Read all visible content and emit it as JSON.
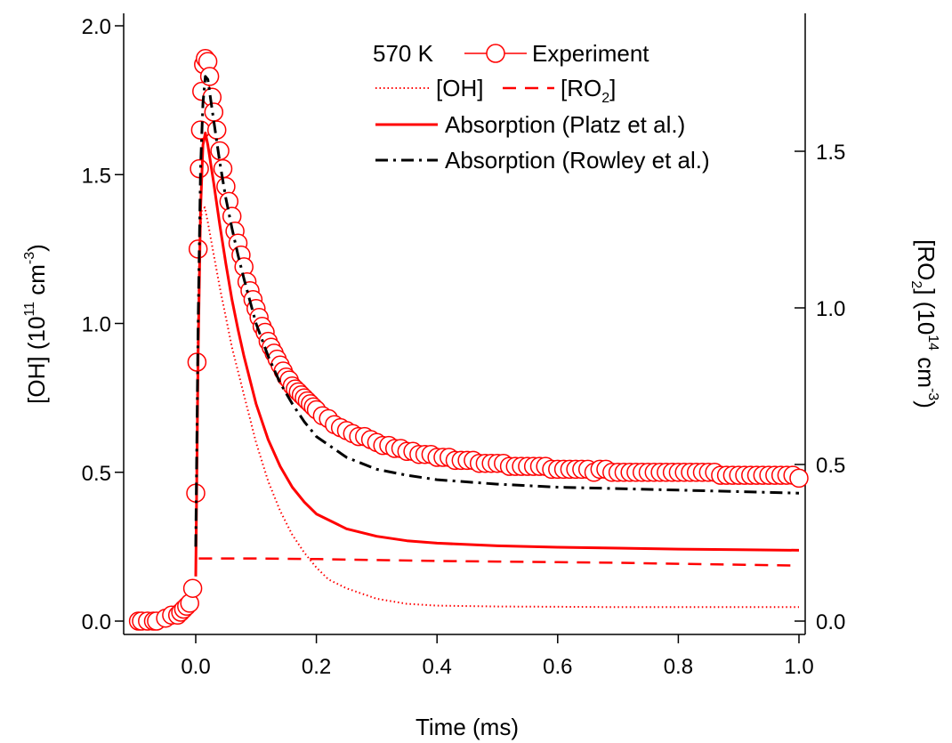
{
  "chart_data": {
    "type": "line",
    "xlabel": "Time (ms)",
    "ylabel_left": {
      "pre": "[OH] (10",
      "sup": "11",
      "mid": " cm",
      "sup2": "-3",
      "post": ")"
    },
    "ylabel_right": {
      "pre": "[RO",
      "sub": "2",
      "mid": "] (10",
      "sup": "14",
      "mid2": " cm",
      "sup2": "-3",
      "post": ")"
    },
    "xlim": [
      -0.1,
      1.0
    ],
    "ylim_left": [
      0.0,
      2.0
    ],
    "ylim_right": [
      0.0,
      1.9
    ],
    "xticks": [
      "0.0",
      "0.2",
      "0.4",
      "0.6",
      "0.8",
      "1.0"
    ],
    "xtick_values": [
      0.0,
      0.2,
      0.4,
      0.6,
      0.8,
      1.0
    ],
    "yticks_left": [
      "0.0",
      "0.5",
      "1.0",
      "1.5",
      "2.0"
    ],
    "ytick_left_values": [
      0.0,
      0.5,
      1.0,
      1.5,
      2.0
    ],
    "yticks_right": [
      "0.0",
      "0.5",
      "1.0",
      "1.5"
    ],
    "ytick_right_values": [
      0.0,
      0.5,
      1.0,
      1.5
    ],
    "grid": false,
    "legend_position": "top-right",
    "legend": {
      "temperature": "570 K",
      "experiment": "Experiment",
      "oh": "[OH]",
      "ro2": {
        "pre": "[RO",
        "sub": "2",
        "post": "]"
      },
      "platz": "Absorption (Platz et al.)",
      "rowley": "Absorption (Rowley et al.)"
    },
    "colors": {
      "red": "#ff0000",
      "black": "#000000"
    },
    "series": [
      {
        "name": "Experiment",
        "axis": "left",
        "style": "markers",
        "color": "#ff0000",
        "x": [
          -0.095,
          -0.09,
          -0.08,
          -0.07,
          -0.065,
          -0.05,
          -0.04,
          -0.03,
          -0.025,
          -0.02,
          -0.015,
          -0.01,
          -0.005,
          0.0,
          0.002,
          0.004,
          0.006,
          0.008,
          0.01,
          0.013,
          0.016,
          0.02,
          0.023,
          0.027,
          0.03,
          0.035,
          0.04,
          0.045,
          0.05,
          0.055,
          0.06,
          0.065,
          0.07,
          0.075,
          0.08,
          0.085,
          0.09,
          0.095,
          0.1,
          0.105,
          0.11,
          0.115,
          0.12,
          0.125,
          0.13,
          0.135,
          0.14,
          0.145,
          0.15,
          0.155,
          0.16,
          0.165,
          0.17,
          0.175,
          0.18,
          0.185,
          0.19,
          0.195,
          0.2,
          0.21,
          0.22,
          0.23,
          0.24,
          0.25,
          0.26,
          0.27,
          0.28,
          0.29,
          0.3,
          0.31,
          0.32,
          0.33,
          0.34,
          0.35,
          0.36,
          0.37,
          0.38,
          0.39,
          0.4,
          0.41,
          0.42,
          0.43,
          0.44,
          0.45,
          0.46,
          0.47,
          0.48,
          0.49,
          0.5,
          0.51,
          0.52,
          0.53,
          0.54,
          0.55,
          0.56,
          0.57,
          0.58,
          0.59,
          0.6,
          0.61,
          0.62,
          0.63,
          0.64,
          0.65,
          0.66,
          0.67,
          0.68,
          0.69,
          0.7,
          0.71,
          0.72,
          0.73,
          0.74,
          0.75,
          0.76,
          0.77,
          0.78,
          0.79,
          0.8,
          0.81,
          0.82,
          0.83,
          0.84,
          0.85,
          0.86,
          0.87,
          0.88,
          0.89,
          0.9,
          0.91,
          0.92,
          0.93,
          0.94,
          0.95,
          0.96,
          0.97,
          0.98,
          0.99,
          1.0
        ],
        "y": [
          0.0,
          0.0,
          0.0,
          0.0,
          0.0,
          0.01,
          0.02,
          0.02,
          0.03,
          0.04,
          0.05,
          0.06,
          0.11,
          0.43,
          0.87,
          1.25,
          1.52,
          1.65,
          1.78,
          1.87,
          1.89,
          1.88,
          1.83,
          1.76,
          1.71,
          1.65,
          1.58,
          1.52,
          1.46,
          1.41,
          1.36,
          1.31,
          1.27,
          1.23,
          1.19,
          1.14,
          1.11,
          1.08,
          1.05,
          1.02,
          0.99,
          0.97,
          0.94,
          0.92,
          0.9,
          0.88,
          0.86,
          0.84,
          0.82,
          0.81,
          0.79,
          0.78,
          0.77,
          0.76,
          0.75,
          0.74,
          0.73,
          0.72,
          0.71,
          0.69,
          0.68,
          0.66,
          0.65,
          0.64,
          0.63,
          0.62,
          0.62,
          0.61,
          0.6,
          0.59,
          0.59,
          0.58,
          0.58,
          0.57,
          0.57,
          0.56,
          0.56,
          0.56,
          0.55,
          0.55,
          0.55,
          0.54,
          0.54,
          0.54,
          0.54,
          0.53,
          0.53,
          0.53,
          0.53,
          0.53,
          0.52,
          0.52,
          0.52,
          0.52,
          0.52,
          0.52,
          0.52,
          0.51,
          0.51,
          0.51,
          0.51,
          0.51,
          0.51,
          0.51,
          0.5,
          0.51,
          0.51,
          0.5,
          0.5,
          0.5,
          0.5,
          0.5,
          0.5,
          0.5,
          0.5,
          0.5,
          0.5,
          0.5,
          0.5,
          0.5,
          0.5,
          0.5,
          0.5,
          0.5,
          0.5,
          0.49,
          0.49,
          0.49,
          0.49,
          0.49,
          0.49,
          0.49,
          0.49,
          0.49,
          0.49,
          0.49,
          0.49,
          0.49,
          0.48
        ]
      },
      {
        "name": "[OH]",
        "axis": "left",
        "style": "dotted",
        "color": "#ff0000",
        "x": [
          0.0,
          0.003,
          0.006,
          0.01,
          0.015,
          0.02,
          0.03,
          0.04,
          0.05,
          0.06,
          0.08,
          0.1,
          0.12,
          0.14,
          0.16,
          0.18,
          0.2,
          0.22,
          0.25,
          0.3,
          0.35,
          0.4,
          0.5,
          0.6,
          0.7,
          0.8,
          0.9,
          1.0
        ],
        "y": [
          0.22,
          0.9,
          1.25,
          1.38,
          1.39,
          1.34,
          1.23,
          1.12,
          1.02,
          0.92,
          0.76,
          0.6,
          0.47,
          0.37,
          0.29,
          0.23,
          0.18,
          0.14,
          0.11,
          0.075,
          0.058,
          0.052,
          0.049,
          0.048,
          0.047,
          0.047,
          0.047,
          0.047
        ]
      },
      {
        "name": "[RO2]",
        "axis": "right",
        "style": "dashed",
        "color": "#ff0000",
        "x": [
          0.005,
          0.1,
          0.2,
          0.3,
          0.4,
          0.5,
          0.6,
          0.7,
          0.8,
          0.9,
          1.0
        ],
        "y": [
          0.2,
          0.2,
          0.198,
          0.195,
          0.192,
          0.19,
          0.188,
          0.186,
          0.183,
          0.18,
          0.177
        ]
      },
      {
        "name": "Absorption (Platz et al.)",
        "axis": "left",
        "style": "solid",
        "color": "#ff0000",
        "x": [
          0.0,
          0.004,
          0.008,
          0.012,
          0.016,
          0.02,
          0.03,
          0.04,
          0.05,
          0.06,
          0.07,
          0.08,
          0.1,
          0.12,
          0.14,
          0.16,
          0.18,
          0.2,
          0.25,
          0.3,
          0.35,
          0.4,
          0.5,
          0.6,
          0.7,
          0.8,
          0.9,
          1.0
        ],
        "y": [
          0.15,
          0.9,
          1.38,
          1.6,
          1.64,
          1.6,
          1.47,
          1.33,
          1.2,
          1.08,
          0.98,
          0.89,
          0.73,
          0.61,
          0.52,
          0.45,
          0.4,
          0.36,
          0.31,
          0.285,
          0.27,
          0.262,
          0.253,
          0.248,
          0.245,
          0.242,
          0.24,
          0.238
        ]
      },
      {
        "name": "Absorption (Rowley et al.)",
        "axis": "left",
        "style": "dashdot",
        "color": "#000000",
        "x": [
          0.0,
          0.004,
          0.008,
          0.012,
          0.016,
          0.02,
          0.025,
          0.03,
          0.04,
          0.05,
          0.06,
          0.07,
          0.08,
          0.1,
          0.12,
          0.14,
          0.16,
          0.18,
          0.2,
          0.25,
          0.3,
          0.35,
          0.4,
          0.5,
          0.6,
          0.7,
          0.8,
          0.9,
          1.0
        ],
        "y": [
          0.25,
          1.0,
          1.52,
          1.74,
          1.83,
          1.82,
          1.75,
          1.68,
          1.54,
          1.42,
          1.32,
          1.23,
          1.15,
          1.0,
          0.89,
          0.8,
          0.73,
          0.67,
          0.62,
          0.55,
          0.51,
          0.49,
          0.475,
          0.46,
          0.45,
          0.445,
          0.44,
          0.435,
          0.43
        ]
      }
    ]
  }
}
